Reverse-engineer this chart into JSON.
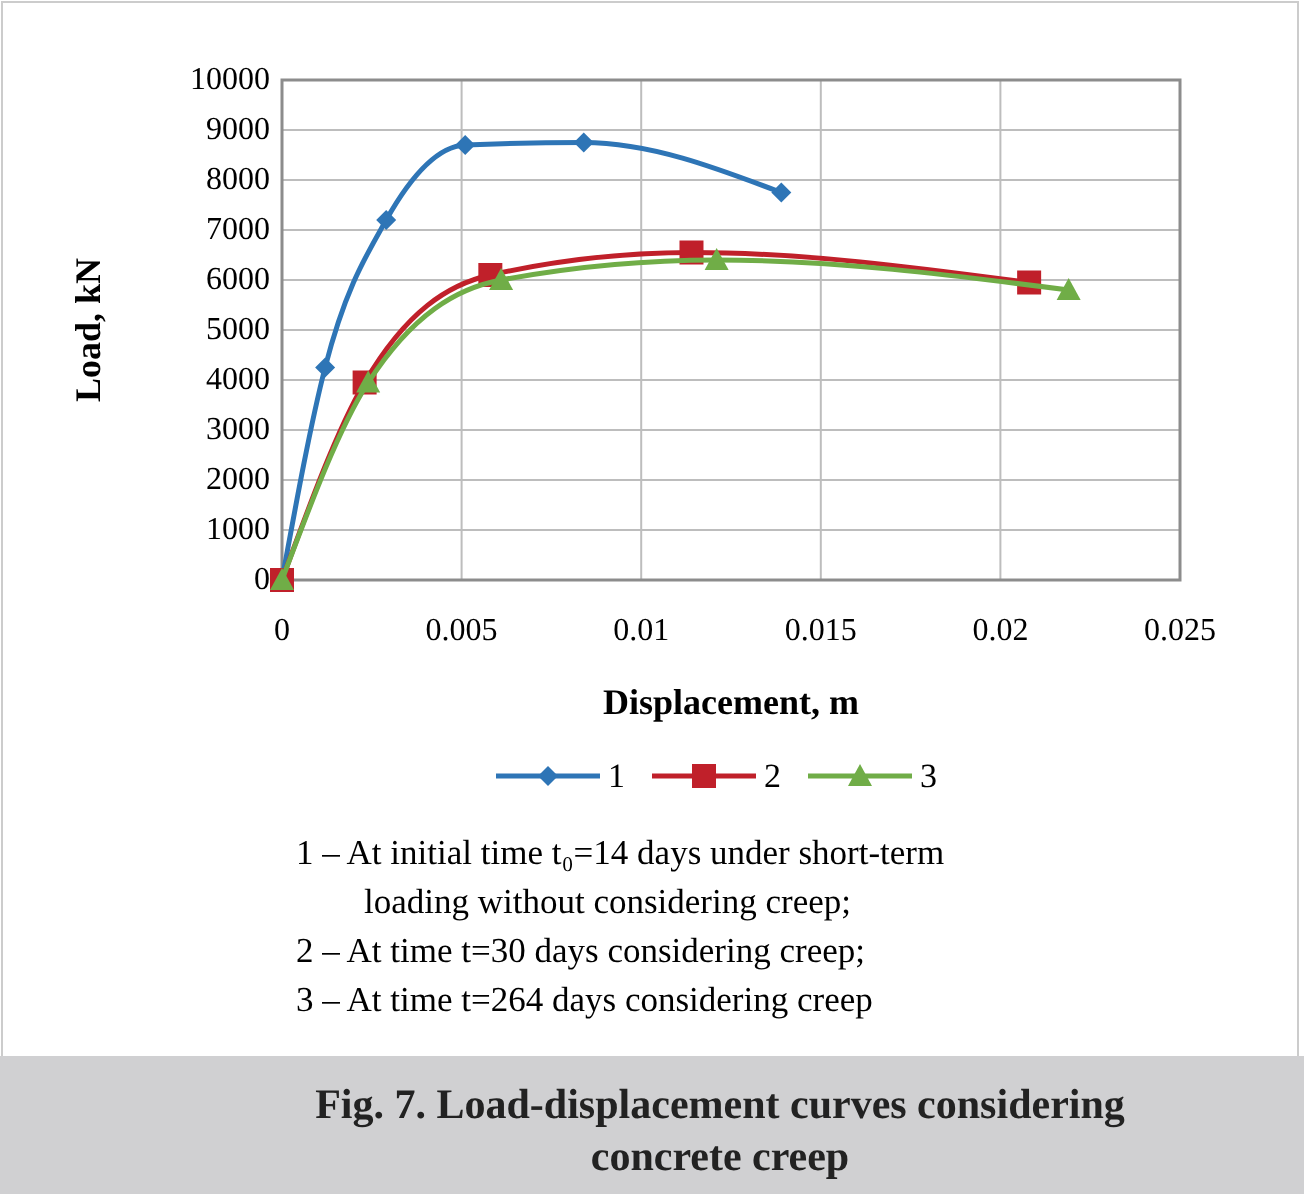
{
  "chart_data": {
    "type": "line",
    "title": "Fig. 7. Load-displacement curves considering concrete creep",
    "xlabel": "Displacement, m",
    "ylabel": "Load, kN",
    "xlim": [
      0,
      0.025
    ],
    "xticks": [
      0,
      0.005,
      0.01,
      0.015,
      0.02,
      0.025
    ],
    "ylim": [
      0,
      10000
    ],
    "yticks": [
      0,
      1000,
      2000,
      3000,
      4000,
      5000,
      6000,
      7000,
      8000,
      9000,
      10000
    ],
    "grid": true,
    "legend": "bottom",
    "series": [
      {
        "name": "1",
        "color": "#2e75b6",
        "marker": "diamond",
        "x": [
          0,
          0.0012,
          0.0029,
          0.0051,
          0.0084,
          0.0139
        ],
        "values": [
          0,
          4250,
          7200,
          8700,
          8750,
          7750
        ]
      },
      {
        "name": "2",
        "color": "#c0202a",
        "marker": "square",
        "x": [
          0,
          0.0023,
          0.0058,
          0.0114,
          0.0208
        ],
        "values": [
          0,
          3950,
          6100,
          6550,
          5950
        ]
      },
      {
        "name": "3",
        "color": "#70ad47",
        "marker": "triangle",
        "x": [
          0,
          0.0024,
          0.0061,
          0.0121,
          0.0219
        ],
        "values": [
          0,
          3950,
          6000,
          6400,
          5800
        ]
      }
    ],
    "annotations": [
      "1 – At initial time t₀=14 days under short-term loading without considering creep;",
      "2 – At time t=30 days considering creep;",
      "3 – At time t=264 days considering creep"
    ]
  }
}
